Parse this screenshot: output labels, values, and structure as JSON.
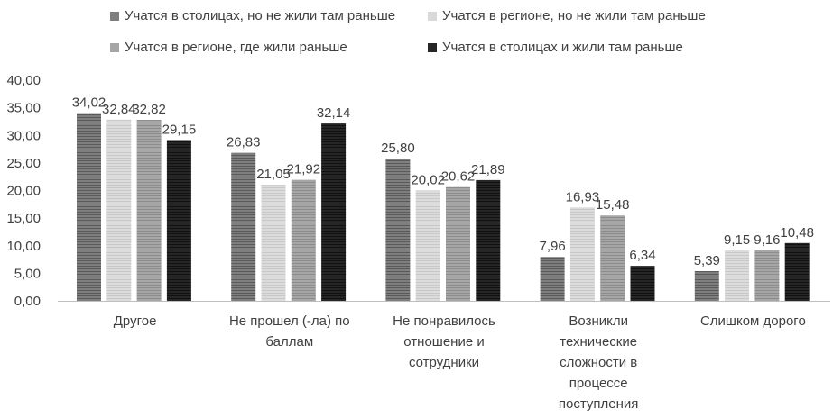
{
  "chart_data": {
    "type": "bar",
    "title": "",
    "xlabel": "",
    "ylabel": "",
    "ylim": [
      0,
      40
    ],
    "yticks": [
      "0,00",
      "5,00",
      "10,00",
      "15,00",
      "20,00",
      "25,00",
      "30,00",
      "35,00",
      "40,00"
    ],
    "grid": false,
    "legend_position": "top",
    "categories": [
      "Другое",
      "Не прошел (-ла) по баллам",
      "Не понравилось отношение и сотрудники",
      "Возникли технические сложности в процессе поступления",
      "Слишком дорого"
    ],
    "series": [
      {
        "name": "Учатся в столицах, но не жили там раньше",
        "color": "#7f7f7f",
        "values": [
          34.02,
          26.83,
          25.8,
          7.96,
          5.39
        ],
        "labels": [
          "34,02",
          "26,83",
          "25,80",
          "7,96",
          "5,39"
        ]
      },
      {
        "name": "Учатся в регионе, но не жили там раньше",
        "color": "#d9d9d9",
        "values": [
          32.84,
          21.05,
          20.02,
          16.93,
          9.15
        ],
        "labels": [
          "32,84",
          "21,05",
          "20,02",
          "16,93",
          "9,15"
        ]
      },
      {
        "name": "Учатся в регионе, где жили раньше",
        "color": "#a6a6a6",
        "values": [
          32.82,
          21.92,
          20.62,
          15.48,
          9.16
        ],
        "labels": [
          "32,82",
          "21,92",
          "20,62",
          "15,48",
          "9,16"
        ]
      },
      {
        "name": "Учатся в столицах и жили там раньше",
        "color": "#262626",
        "values": [
          29.15,
          32.14,
          21.89,
          6.34,
          10.48
        ],
        "labels": [
          "29,15",
          "32,14",
          "21,89",
          "6,34",
          "10,48"
        ]
      }
    ]
  }
}
